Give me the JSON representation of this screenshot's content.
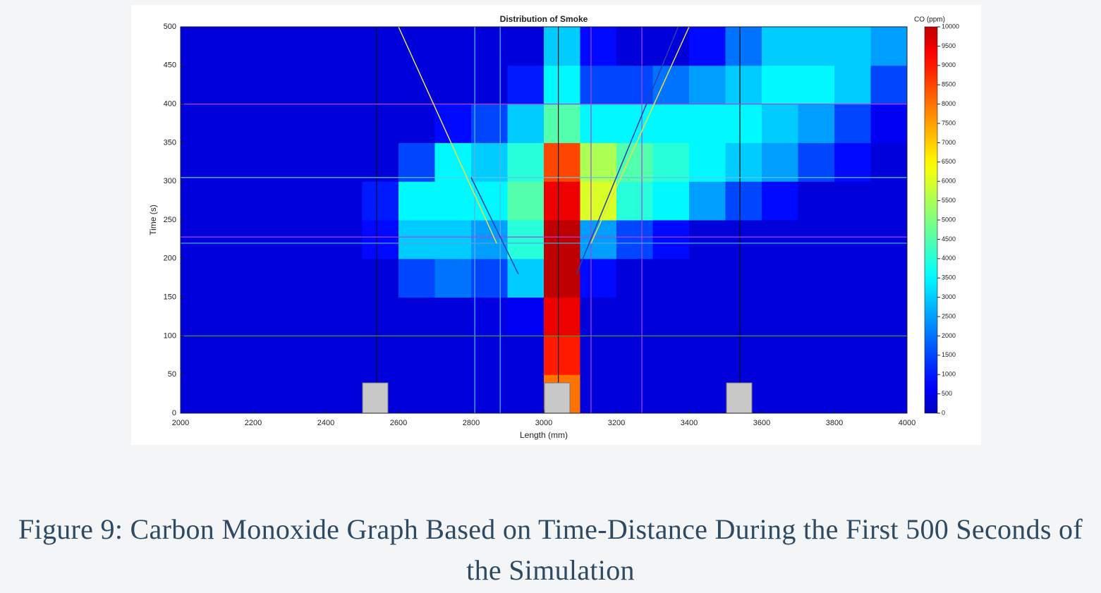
{
  "chart_data": {
    "type": "heatmap",
    "title": "Distribution of Smoke",
    "x_label": "Length (mm)",
    "y_label": "Time (s)",
    "colorbar_label": "CO (ppm)",
    "colormap": "jet",
    "xbins": [
      2000,
      2100,
      2200,
      2300,
      2400,
      2500,
      2600,
      2700,
      2800,
      2900,
      3000,
      3100,
      3200,
      3300,
      3400,
      3500,
      3600,
      3700,
      3800,
      3900,
      4000
    ],
    "ybins": [
      0,
      50,
      100,
      150,
      200,
      250,
      300,
      350,
      400,
      450,
      500
    ],
    "z": [
      [
        300,
        300,
        300,
        300,
        300,
        300,
        300,
        300,
        300,
        300,
        8000,
        300,
        300,
        300,
        300,
        300,
        300,
        300,
        300,
        300
      ],
      [
        300,
        300,
        300,
        300,
        300,
        300,
        300,
        300,
        300,
        300,
        9000,
        300,
        300,
        300,
        300,
        300,
        300,
        300,
        300,
        300
      ],
      [
        300,
        300,
        300,
        300,
        300,
        300,
        300,
        300,
        400,
        600,
        9500,
        300,
        300,
        300,
        300,
        300,
        300,
        300,
        300,
        300
      ],
      [
        300,
        300,
        300,
        300,
        300,
        300,
        1500,
        2000,
        1500,
        3000,
        10000,
        800,
        300,
        300,
        300,
        300,
        300,
        300,
        300,
        300
      ],
      [
        300,
        300,
        300,
        300,
        300,
        800,
        3000,
        3000,
        2500,
        4000,
        10000,
        2500,
        1500,
        800,
        300,
        300,
        300,
        300,
        300,
        300
      ],
      [
        300,
        300,
        300,
        300,
        300,
        1000,
        3500,
        3500,
        3500,
        4500,
        9500,
        6000,
        4000,
        3500,
        2500,
        1500,
        800,
        300,
        300,
        300
      ],
      [
        300,
        300,
        300,
        300,
        300,
        300,
        1500,
        3500,
        3000,
        4000,
        8500,
        5500,
        4500,
        4000,
        3500,
        3000,
        2500,
        1500,
        800,
        300
      ],
      [
        300,
        300,
        300,
        300,
        300,
        300,
        300,
        800,
        1500,
        3000,
        4500,
        3500,
        3500,
        3500,
        3500,
        3500,
        3000,
        2500,
        1500,
        600
      ],
      [
        300,
        300,
        300,
        300,
        300,
        300,
        300,
        300,
        300,
        1000,
        3500,
        1500,
        1500,
        2000,
        2500,
        3000,
        3500,
        3500,
        3000,
        1500
      ],
      [
        300,
        300,
        300,
        300,
        300,
        300,
        300,
        300,
        300,
        300,
        3000,
        800,
        300,
        300,
        800,
        2000,
        3000,
        3000,
        3000,
        2500
      ]
    ],
    "xlim": [
      2000,
      4000
    ],
    "ylim": [
      0,
      500
    ],
    "clim": [
      0,
      10000
    ],
    "xticks": [
      2000,
      2200,
      2400,
      2600,
      2800,
      3000,
      3200,
      3400,
      3600,
      3800,
      4000
    ],
    "yticks": [
      0,
      50,
      100,
      150,
      200,
      250,
      300,
      350,
      400,
      450,
      500
    ],
    "cticks": [
      0,
      500,
      1000,
      1500,
      2000,
      2500,
      3000,
      3500,
      4000,
      4500,
      5000,
      5500,
      6000,
      6500,
      7000,
      7500,
      8000,
      8500,
      9000,
      9500,
      10000
    ],
    "vlines": [
      {
        "x": 2540,
        "color": "#111111"
      },
      {
        "x": 2810,
        "color": "#5ab4e0"
      },
      {
        "x": 2880,
        "color": "#5ab4e0"
      },
      {
        "x": 3040,
        "color": "#111111"
      },
      {
        "x": 3130,
        "color": "#b040e0"
      },
      {
        "x": 3270,
        "color": "#b040e0"
      },
      {
        "x": 3540,
        "color": "#111111"
      }
    ],
    "hlines": [
      {
        "y": 100,
        "color": "#3a9a3a"
      },
      {
        "y": 220,
        "color": "#4aa8e0"
      },
      {
        "y": 228,
        "color": "#b040e0"
      },
      {
        "y": 305,
        "color": "#5ac8e0"
      },
      {
        "y": 400,
        "color": "#b040e0"
      }
    ],
    "lines": [
      {
        "x": [
          2600,
          2870
        ],
        "y": [
          500,
          220
        ],
        "color": "#e8e040"
      },
      {
        "x": [
          2800,
          2930
        ],
        "y": [
          305,
          180
        ],
        "color": "#2a3fb0"
      },
      {
        "x": [
          3400,
          3130
        ],
        "y": [
          500,
          220
        ],
        "color": "#e8e040"
      },
      {
        "x": [
          3370,
          3090
        ],
        "y": [
          500,
          180
        ],
        "color": "#2a3fb0"
      }
    ]
  },
  "caption": "Figure 9: Carbon Monoxide Graph Based on Time-Distance During the First 500 Seconds of the Simulation"
}
